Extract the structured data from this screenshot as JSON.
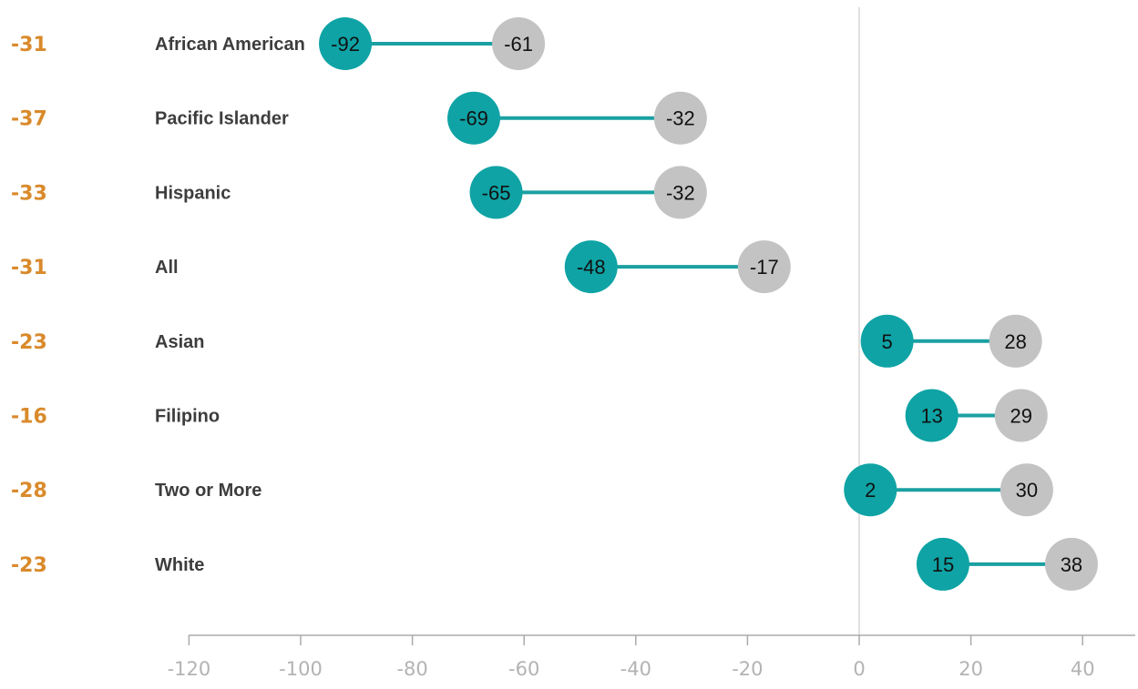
{
  "chart_data": {
    "type": "dumbbell",
    "title": "",
    "xlabel": "",
    "ylabel": "",
    "xlim": [
      -120,
      50
    ],
    "x_ticks": [
      -120,
      -100,
      -80,
      -60,
      -40,
      -20,
      0,
      20,
      40
    ],
    "x_tick_labels": [
      "-120",
      "-100",
      "-80",
      "-60",
      "-40",
      "-20",
      "0",
      "20",
      "40"
    ],
    "grid": false,
    "zero_line": true,
    "categories": [
      "African American",
      "Pacific Islander",
      "Hispanic",
      "All",
      "Asian",
      "Filipino",
      "Two or More",
      "White"
    ],
    "series": [
      {
        "values": [
          -92,
          -69,
          -65,
          -48,
          5,
          13,
          2,
          15
        ]
      },
      {
        "values": [
          -61,
          -32,
          -32,
          -17,
          28,
          29,
          30,
          38
        ]
      }
    ],
    "differences": [
      "-31",
      "-37",
      "-33",
      "-31",
      "-23",
      "-16",
      "-28",
      "-23"
    ]
  },
  "colors": {
    "series_1": "#0fa3a5",
    "series_2": "#c3c3c3",
    "connector": "#1aa0a3",
    "difference_text": "#d98a2b",
    "category_text": "#3d3d3d",
    "tick_text": "#b3b3b3",
    "axis": "#aaaaaa",
    "zero_line": "#d6d6d6",
    "dot_text": "#111111"
  }
}
